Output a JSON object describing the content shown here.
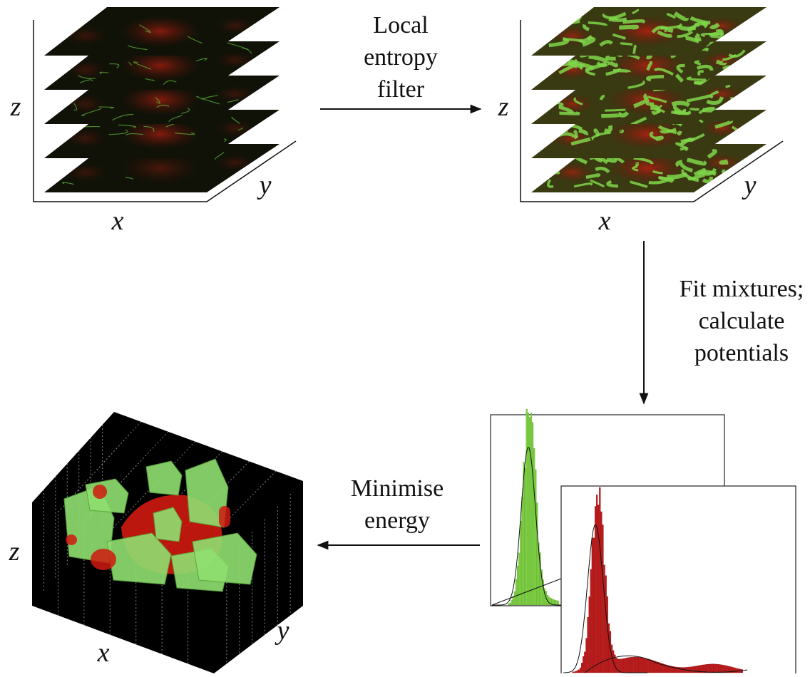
{
  "steps": [
    {
      "label": [
        "Local",
        "entropy",
        "filter"
      ]
    },
    {
      "label": [
        "Fit mixtures;",
        "calculate",
        "potentials"
      ]
    },
    {
      "label": [
        "Minimise",
        "energy"
      ]
    }
  ],
  "panels": {
    "input_stack": {
      "x": "x",
      "y": "y",
      "z": "z"
    },
    "filtered_stack": {
      "x": "x",
      "y": "y",
      "z": "z"
    },
    "segmentation": {
      "x": "x",
      "y": "y",
      "z": "z"
    }
  }
}
